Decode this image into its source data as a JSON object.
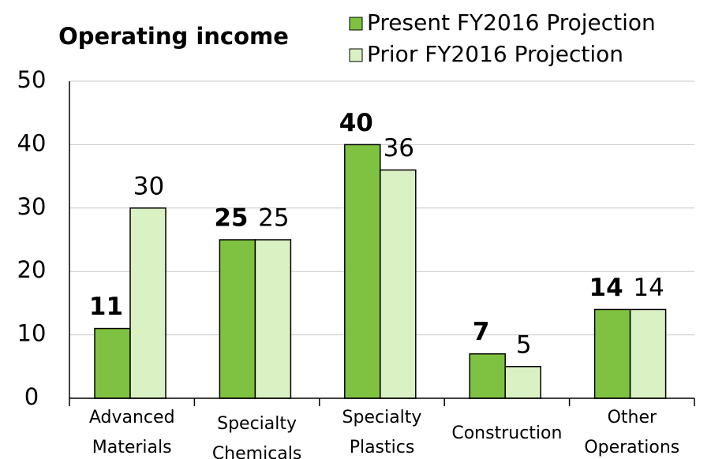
{
  "chart_data": {
    "type": "bar",
    "title": "Operating income",
    "categories": [
      "Advanced Materials",
      "Specialty Chemicals",
      "Specialty Plastics",
      "Construction",
      "Other Operations"
    ],
    "series": [
      {
        "name": "Present FY2016 Projection",
        "color": "#7fc241",
        "values": [
          11,
          25,
          40,
          7,
          14
        ]
      },
      {
        "name": "Prior FY2016 Projection",
        "color": "#daf1c3",
        "values": [
          30,
          25,
          36,
          5,
          14
        ]
      }
    ],
    "ylim": [
      0,
      50
    ],
    "yticks": [
      0,
      10,
      20,
      30,
      40,
      50
    ],
    "grid": true
  }
}
